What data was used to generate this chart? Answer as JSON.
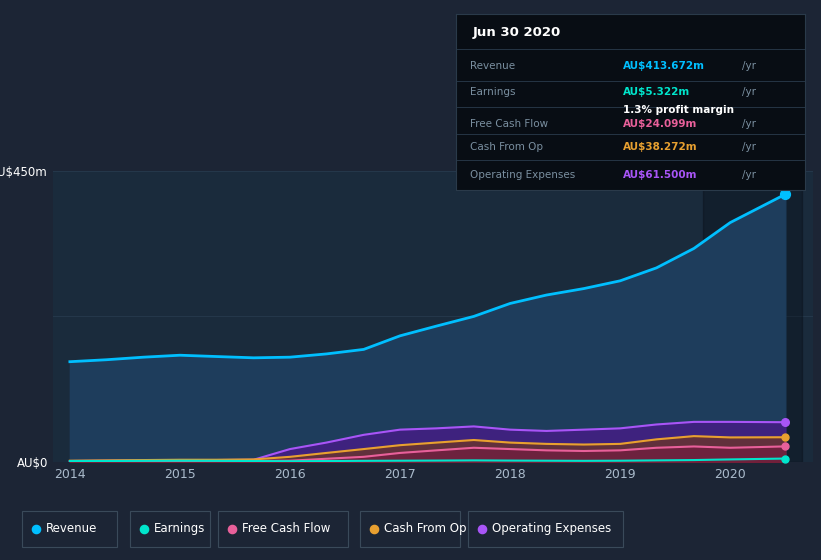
{
  "background_color": "#1c2535",
  "plot_bg_color": "#1a2b3c",
  "grid_color": "#2a3d52",
  "years": [
    2014,
    2014.33,
    2014.67,
    2015,
    2015.33,
    2015.67,
    2016,
    2016.33,
    2016.67,
    2017,
    2017.33,
    2017.67,
    2018,
    2018.33,
    2018.67,
    2019,
    2019.33,
    2019.67,
    2020,
    2020.5
  ],
  "revenue": [
    155,
    158,
    162,
    165,
    163,
    161,
    162,
    167,
    174,
    195,
    210,
    225,
    245,
    258,
    268,
    280,
    300,
    330,
    370,
    413.672
  ],
  "earnings": [
    1.5,
    1.5,
    1.8,
    2.0,
    1.8,
    1.5,
    1.2,
    1.5,
    1.8,
    2.0,
    2.2,
    2.5,
    2.2,
    2.0,
    1.8,
    2.0,
    2.5,
    3.0,
    4.0,
    5.322
  ],
  "free_cash_flow": [
    0.5,
    0.8,
    1.0,
    1.5,
    1.5,
    1.5,
    2.0,
    5.0,
    8.0,
    14.0,
    18.0,
    22.0,
    20.0,
    18.0,
    17.0,
    18.0,
    22.0,
    24.0,
    22.0,
    24.099
  ],
  "cash_from_op": [
    2.0,
    2.5,
    3.0,
    3.5,
    3.5,
    4.0,
    8.0,
    14.0,
    20.0,
    26.0,
    30.0,
    34.0,
    30.0,
    28.0,
    27.0,
    28.0,
    35.0,
    40.0,
    38.0,
    38.272
  ],
  "operating_exp": [
    1.5,
    2.0,
    2.5,
    3.0,
    3.0,
    3.5,
    20.0,
    30.0,
    42.0,
    50.0,
    52.0,
    55.0,
    50.0,
    48.0,
    50.0,
    52.0,
    58.0,
    62.0,
    62.0,
    61.5
  ],
  "revenue_color": "#00bfff",
  "earnings_color": "#00e5cc",
  "free_cash_flow_color": "#e8609a",
  "cash_from_op_color": "#e8a030",
  "operating_exp_color": "#a855f7",
  "revenue_fill": "#1e3d5c",
  "ylim": [
    0,
    450
  ],
  "xticks": [
    2014,
    2015,
    2016,
    2017,
    2018,
    2019,
    2020
  ],
  "tooltip_title": "Jun 30 2020",
  "tooltip_bg": "#080d14",
  "tooltip_border": "#2a3a4a",
  "legend_labels": [
    "Revenue",
    "Earnings",
    "Free Cash Flow",
    "Cash From Op",
    "Operating Expenses"
  ],
  "legend_colors": [
    "#00bfff",
    "#00e5cc",
    "#e8609a",
    "#e8a030",
    "#a855f7"
  ]
}
